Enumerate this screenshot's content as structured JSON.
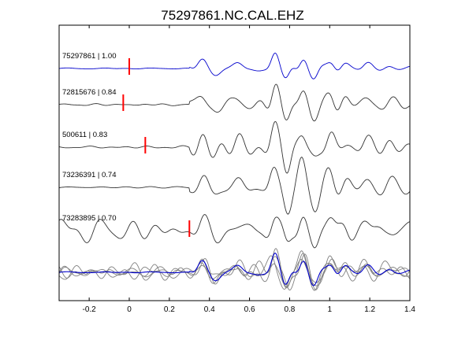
{
  "chart_data": {
    "type": "line",
    "title": "75297861.NC.CAL.EHZ",
    "xlabel": "",
    "ylabel": "",
    "xlim": [
      -0.35,
      1.4
    ],
    "x_ticks": [
      "-0.2",
      "0",
      "0.2",
      "0.4",
      "0.6",
      "0.8",
      "1",
      "1.2",
      "1.4"
    ],
    "x_tick_values": [
      -0.2,
      0,
      0.2,
      0.4,
      0.6,
      0.8,
      1.0,
      1.2,
      1.4
    ],
    "grid": false,
    "colors": {
      "master": "#0000cc",
      "trace": "#333333",
      "stack": "#808080",
      "pick": "#ff0000"
    },
    "traces": [
      {
        "label": "75297861 | 1.00",
        "pick_time": 0.0
      },
      {
        "label": "72815676 | 0.84",
        "pick_time": -0.03
      },
      {
        "label": "500611 | 0.83",
        "pick_time": 0.08
      },
      {
        "label": "73236391 | 0.74",
        "pick_time": null
      },
      {
        "label": "73283895 | 0.70",
        "pick_time": 0.3
      }
    ],
    "stack": {
      "count": 5
    }
  }
}
